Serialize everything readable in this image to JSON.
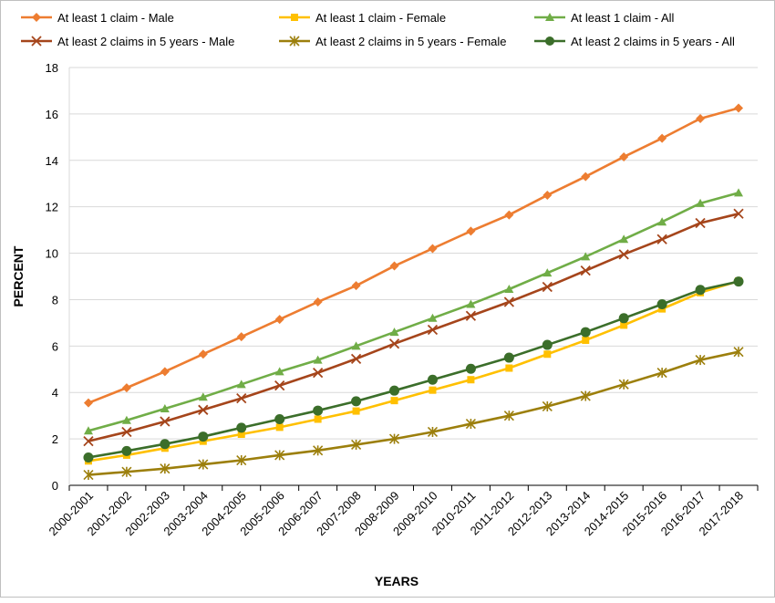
{
  "chart_data": {
    "type": "line",
    "title": "",
    "xlabel": "YEARS",
    "ylabel": "PERCENT",
    "ylim": [
      0,
      18
    ],
    "ystep": 2,
    "legend_position": "top",
    "categories": [
      "2000-2001",
      "2001-2002",
      "2002-2003",
      "2003-2004",
      "2004-2005",
      "2005-2006",
      "2006-2007",
      "2007-2008",
      "2008-2009",
      "2009-2010",
      "2010-2011",
      "2011-2012",
      "2012-2013",
      "2013-2014",
      "2014-2015",
      "2015-2016",
      "2016-2017",
      "2017-2018"
    ],
    "series": [
      {
        "name": "At least 1 claim -  Male",
        "marker": "diamond",
        "color": "#ED7D31",
        "values": [
          3.55,
          4.2,
          4.9,
          5.65,
          6.4,
          7.15,
          7.9,
          8.6,
          9.45,
          10.2,
          10.95,
          11.65,
          12.5,
          13.3,
          14.15,
          14.95,
          15.8,
          16.25
        ]
      },
      {
        "name": "At least 1 claim -  Female",
        "marker": "square",
        "color": "#FFC000",
        "values": [
          1.05,
          1.3,
          1.6,
          1.9,
          2.2,
          2.5,
          2.85,
          3.2,
          3.65,
          4.1,
          4.55,
          5.05,
          5.65,
          6.25,
          6.9,
          7.6,
          8.3,
          8.8
        ]
      },
      {
        "name": "At least 1 claim -  All",
        "marker": "triangle",
        "color": "#70AD47",
        "values": [
          2.35,
          2.8,
          3.3,
          3.8,
          4.35,
          4.9,
          5.4,
          6.0,
          6.6,
          7.2,
          7.8,
          8.45,
          9.15,
          9.85,
          10.6,
          11.35,
          12.15,
          12.6
        ]
      },
      {
        "name": "At least 2 claims in 5 years -  Male",
        "marker": "x",
        "color": "#A5451B",
        "values": [
          1.9,
          2.3,
          2.75,
          3.25,
          3.75,
          4.3,
          4.85,
          5.45,
          6.1,
          6.7,
          7.3,
          7.9,
          8.55,
          9.25,
          9.95,
          10.6,
          11.3,
          11.7
        ]
      },
      {
        "name": "At least 2 claims in 5 years -  Female",
        "marker": "star",
        "color": "#9C7F0C",
        "values": [
          0.45,
          0.58,
          0.72,
          0.9,
          1.08,
          1.3,
          1.5,
          1.75,
          2.0,
          2.3,
          2.65,
          3.0,
          3.4,
          3.85,
          4.35,
          4.85,
          5.4,
          5.75
        ]
      },
      {
        "name": "At least 2 claims in 5 years -  All",
        "marker": "circle",
        "color": "#3B6E2A",
        "values": [
          1.2,
          1.48,
          1.78,
          2.1,
          2.48,
          2.85,
          3.22,
          3.62,
          4.08,
          4.55,
          5.02,
          5.5,
          6.05,
          6.6,
          7.2,
          7.8,
          8.42,
          8.78
        ]
      }
    ]
  }
}
